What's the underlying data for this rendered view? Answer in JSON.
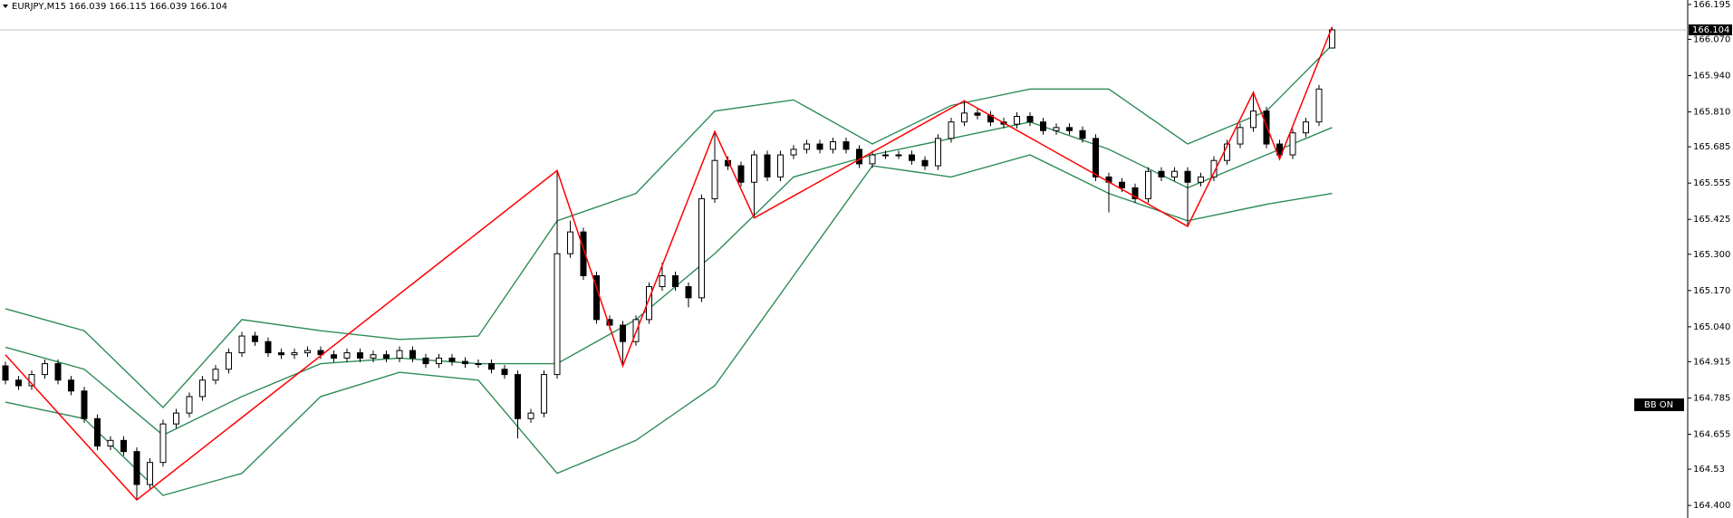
{
  "header": {
    "symbol": "EURJPY,M15",
    "ohlc": "166.039 166.115 166.039 166.104"
  },
  "chart_data": {
    "type": "candlestick",
    "ylim": [
      164.355,
      166.211
    ],
    "yticks": [
      166.195,
      {
        "value": 166.07,
        "label": "166.070"
      },
      {
        "value": 165.94,
        "label": "165.940"
      },
      {
        "value": 165.81,
        "label": "165.810"
      },
      165.685,
      165.555,
      165.425,
      {
        "value": 165.3,
        "label": "165.300"
      },
      {
        "value": 165.17,
        "label": "165.170"
      },
      {
        "value": 165.04,
        "label": "165.040"
      },
      164.915,
      164.785,
      164.655,
      164.53,
      {
        "value": 164.4,
        "label": "164.400"
      }
    ],
    "last_price": 166.104,
    "indicator_label": "BB ON",
    "candles": {
      "open": [
        164.9,
        164.849,
        164.829,
        164.869,
        164.908,
        164.849,
        164.81,
        164.711,
        164.613,
        164.633,
        164.593,
        164.475,
        164.554,
        164.692,
        164.731,
        164.79,
        164.849,
        164.888,
        164.947,
        165.007,
        164.987,
        164.947,
        164.94,
        164.947,
        164.955,
        164.94,
        164.928,
        164.947,
        164.928,
        164.94,
        164.928,
        164.955,
        164.928,
        164.908,
        164.928,
        164.916,
        164.908,
        164.908,
        164.888,
        164.869,
        164.711,
        164.731,
        164.869,
        165.302,
        165.38,
        165.223,
        165.066,
        165.046,
        164.987,
        165.066,
        165.184,
        165.223,
        165.184,
        165.144,
        165.499,
        165.636,
        165.617,
        165.558,
        165.656,
        165.577,
        165.656,
        165.676,
        165.695,
        165.676,
        165.703,
        165.676,
        165.624,
        165.656,
        165.656,
        165.656,
        165.636,
        165.617,
        165.715,
        165.774,
        165.806,
        165.798,
        165.774,
        165.766,
        165.794,
        165.774,
        165.743,
        165.754,
        165.743,
        165.715,
        165.577,
        165.558,
        165.538,
        165.499,
        165.597,
        165.577,
        165.597,
        165.558,
        165.577,
        165.636,
        165.695,
        165.754,
        165.813,
        165.695,
        165.656,
        165.735,
        165.774,
        166.039
      ],
      "high": [
        164.915,
        164.864,
        164.884,
        164.923,
        164.923,
        164.864,
        164.825,
        164.726,
        164.648,
        164.648,
        164.608,
        164.569,
        164.707,
        164.746,
        164.805,
        164.864,
        164.903,
        164.962,
        165.022,
        165.022,
        165.002,
        164.962,
        164.962,
        164.97,
        164.97,
        164.955,
        164.962,
        164.962,
        164.955,
        164.955,
        164.97,
        164.97,
        164.943,
        164.943,
        164.943,
        164.931,
        164.923,
        164.923,
        164.903,
        164.884,
        164.746,
        164.884,
        165.6,
        165.42,
        165.395,
        165.238,
        165.081,
        165.061,
        165.081,
        165.199,
        165.27,
        165.238,
        165.199,
        165.514,
        165.74,
        165.651,
        165.632,
        165.671,
        165.671,
        165.671,
        165.691,
        165.71,
        165.71,
        165.718,
        165.718,
        165.691,
        165.671,
        165.671,
        165.671,
        165.671,
        165.651,
        165.73,
        165.789,
        165.85,
        165.821,
        165.813,
        165.789,
        165.809,
        165.809,
        165.789,
        165.769,
        165.769,
        165.758,
        165.73,
        165.592,
        165.573,
        165.553,
        165.612,
        165.612,
        165.612,
        165.612,
        165.592,
        165.651,
        165.71,
        165.769,
        165.88,
        165.828,
        165.71,
        165.75,
        165.789,
        165.907,
        166.115
      ],
      "low": [
        164.834,
        164.814,
        164.814,
        164.854,
        164.834,
        164.795,
        164.696,
        164.598,
        164.598,
        164.578,
        164.42,
        164.46,
        164.539,
        164.677,
        164.716,
        164.775,
        164.834,
        164.873,
        164.932,
        164.972,
        164.932,
        164.925,
        164.925,
        164.932,
        164.925,
        164.913,
        164.913,
        164.913,
        164.913,
        164.913,
        164.913,
        164.913,
        164.893,
        164.893,
        164.901,
        164.893,
        164.893,
        164.873,
        164.854,
        164.64,
        164.696,
        164.716,
        164.854,
        165.287,
        165.208,
        165.051,
        165.031,
        164.9,
        164.972,
        165.051,
        165.169,
        165.169,
        165.11,
        165.129,
        165.484,
        165.602,
        165.543,
        165.43,
        165.562,
        165.562,
        165.641,
        165.661,
        165.661,
        165.661,
        165.661,
        165.609,
        165.609,
        165.641,
        165.641,
        165.621,
        165.602,
        165.602,
        165.7,
        165.759,
        165.783,
        165.759,
        165.751,
        165.751,
        165.759,
        165.728,
        165.728,
        165.728,
        165.7,
        165.562,
        165.45,
        165.523,
        165.484,
        165.484,
        165.562,
        165.562,
        165.4,
        165.543,
        165.562,
        165.621,
        165.68,
        165.739,
        165.68,
        165.641,
        165.641,
        165.72,
        165.759,
        166.039
      ],
      "close": [
        164.849,
        164.829,
        164.869,
        164.908,
        164.849,
        164.81,
        164.711,
        164.613,
        164.633,
        164.593,
        164.475,
        164.554,
        164.692,
        164.731,
        164.79,
        164.849,
        164.888,
        164.947,
        165.007,
        164.987,
        164.947,
        164.94,
        164.947,
        164.955,
        164.94,
        164.928,
        164.947,
        164.928,
        164.94,
        164.928,
        164.955,
        164.928,
        164.908,
        164.928,
        164.916,
        164.908,
        164.908,
        164.888,
        164.869,
        164.711,
        164.731,
        164.869,
        165.302,
        165.38,
        165.223,
        165.066,
        165.046,
        164.987,
        165.066,
        165.184,
        165.223,
        165.184,
        165.144,
        165.499,
        165.636,
        165.617,
        165.558,
        165.656,
        165.577,
        165.656,
        165.676,
        165.695,
        165.676,
        165.703,
        165.676,
        165.624,
        165.656,
        165.656,
        165.656,
        165.636,
        165.617,
        165.715,
        165.774,
        165.806,
        165.798,
        165.774,
        165.766,
        165.794,
        165.774,
        165.743,
        165.754,
        165.743,
        165.715,
        165.577,
        165.558,
        165.538,
        165.499,
        165.597,
        165.577,
        165.597,
        165.558,
        165.577,
        165.636,
        165.695,
        165.754,
        165.813,
        165.695,
        165.656,
        165.735,
        165.774,
        165.892,
        166.104
      ]
    },
    "bands": {
      "color": "#2e8b57",
      "x": [
        0,
        6,
        12,
        18,
        24,
        30,
        36,
        42,
        48,
        54,
        60,
        66,
        72,
        78,
        84,
        90,
        96,
        101
      ],
      "upper": [
        165.105,
        165.026,
        164.751,
        165.066,
        165.026,
        164.995,
        165.007,
        165.42,
        165.518,
        165.813,
        165.853,
        165.695,
        165.833,
        165.892,
        165.892,
        165.695,
        165.813,
        166.05
      ],
      "middle": [
        164.967,
        164.888,
        164.652,
        164.79,
        164.908,
        164.928,
        164.908,
        164.908,
        165.066,
        165.302,
        165.577,
        165.656,
        165.715,
        165.774,
        165.676,
        165.538,
        165.656,
        165.754
      ],
      "lower": [
        164.77,
        164.711,
        164.436,
        164.515,
        164.79,
        164.877,
        164.849,
        164.515,
        164.633,
        164.829,
        165.223,
        165.617,
        165.577,
        165.656,
        165.518,
        165.42,
        165.479,
        165.518
      ]
    },
    "zigzag": {
      "color": "#ff0000",
      "x": [
        0,
        10,
        42,
        47,
        54,
        57,
        73,
        90,
        95,
        97,
        101
      ],
      "values": [
        164.94,
        164.42,
        165.6,
        164.9,
        165.74,
        165.43,
        165.85,
        165.4,
        165.88,
        165.641,
        166.115
      ]
    }
  }
}
